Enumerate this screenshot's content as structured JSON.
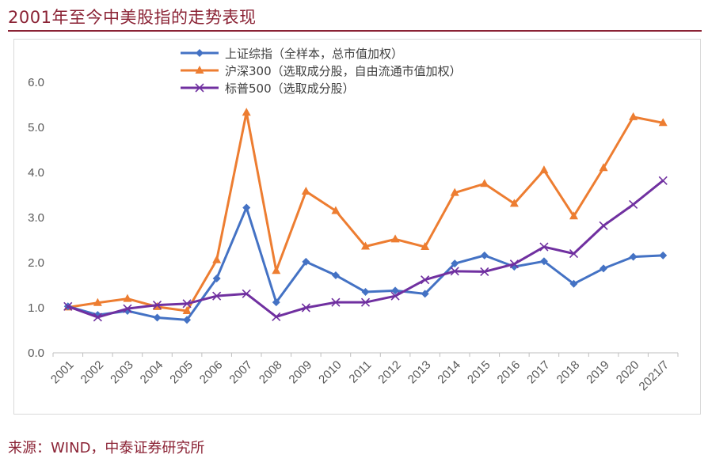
{
  "title": "2001年至今中美股指的走势表现",
  "source": "来源：WIND，中泰证券研究所",
  "chart_data": {
    "type": "line",
    "x": [
      "2001",
      "2002",
      "2003",
      "2004",
      "2005",
      "2006",
      "2007",
      "2008",
      "2009",
      "2010",
      "2011",
      "2012",
      "2013",
      "2014",
      "2015",
      "2016",
      "2017",
      "2018",
      "2019",
      "2020",
      "2021/7"
    ],
    "ylim": [
      0,
      6
    ],
    "yticks": [
      "0.0",
      "1.0",
      "2.0",
      "3.0",
      "4.0",
      "5.0",
      "6.0"
    ],
    "grid": false,
    "legend_position": "top-center",
    "series": [
      {
        "name": "上证综指（全样本，总市值加权）",
        "color": "#4472c4",
        "marker": "diamond",
        "values": [
          1.03,
          0.84,
          0.93,
          0.78,
          0.73,
          1.65,
          3.22,
          1.12,
          2.02,
          1.72,
          1.35,
          1.38,
          1.31,
          1.98,
          2.16,
          1.91,
          2.03,
          1.53,
          1.87,
          2.13,
          2.16
        ]
      },
      {
        "name": "沪深300（选取成分股，自由流通市值加权）",
        "color": "#ed7d31",
        "marker": "triangle",
        "values": [
          1.01,
          1.11,
          1.2,
          1.02,
          0.93,
          2.06,
          5.33,
          1.82,
          3.58,
          3.15,
          2.36,
          2.52,
          2.35,
          3.55,
          3.75,
          3.31,
          4.05,
          3.03,
          4.1,
          5.23,
          5.1
        ]
      },
      {
        "name": "标普500（选取成分股）",
        "color": "#7030a0",
        "marker": "x",
        "values": [
          1.03,
          0.79,
          0.98,
          1.06,
          1.09,
          1.26,
          1.31,
          0.8,
          1.0,
          1.12,
          1.12,
          1.26,
          1.62,
          1.81,
          1.8,
          1.97,
          2.35,
          2.2,
          2.82,
          3.29,
          3.82
        ]
      }
    ]
  }
}
